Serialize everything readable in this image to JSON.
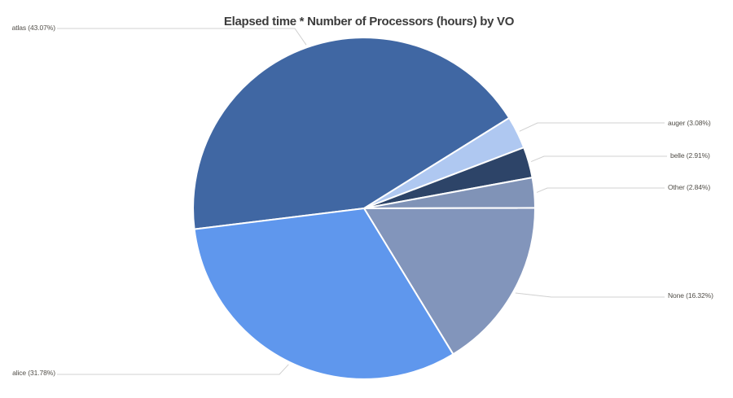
{
  "title": "Elapsed time * Number of Processors (hours) by VO",
  "chart_data": {
    "type": "pie",
    "title": "Elapsed time * Number of Processors (hours) by VO",
    "value_unit": "Elapsed time * Number of Processors (hours)",
    "grouped_by": "VO",
    "legend_position": "none",
    "background_color": "#ffffff",
    "connector_color": "#d0d0d0",
    "label_text_color": "#514e48",
    "start_angle_deg_from_top": 263,
    "slices": [
      {
        "label": "atlas",
        "percent": 43.07,
        "display": "atlas (43.07%)",
        "color": "#4067a3"
      },
      {
        "label": "auger",
        "percent": 3.08,
        "display": "auger (3.08%)",
        "color": "#afc8f1"
      },
      {
        "label": "belle",
        "percent": 2.91,
        "display": "belle (2.91%)",
        "color": "#2d4468"
      },
      {
        "label": "Other",
        "percent": 2.84,
        "display": "Other (2.84%)",
        "color": "#8093b7"
      },
      {
        "label": "None",
        "percent": 16.32,
        "display": "None (16.32%)",
        "color": "#8295bb"
      },
      {
        "label": "alice",
        "percent": 31.78,
        "display": "alice (31.78%)",
        "color": "#5f97ed"
      }
    ]
  }
}
